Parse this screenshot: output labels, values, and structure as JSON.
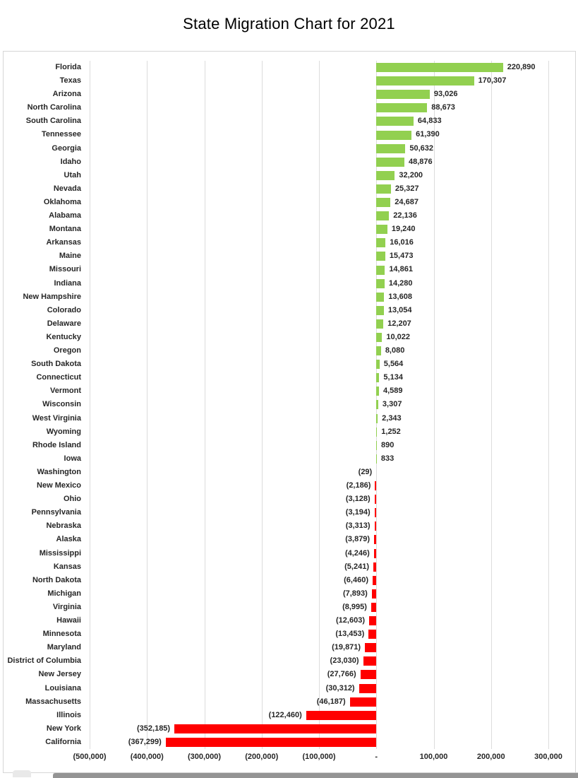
{
  "title": "State Migration Chart for 2021",
  "chart_data": {
    "type": "bar",
    "orientation": "horizontal",
    "title": "State Migration Chart for 2021",
    "legend": "none",
    "grid": "vertical",
    "x_axis": {
      "range": [
        -500000,
        300000
      ],
      "ticks": [
        -500000,
        -400000,
        -300000,
        -200000,
        -100000,
        0,
        100000,
        200000,
        300000
      ],
      "tick_labels": [
        "(500,000)",
        "(400,000)",
        "(300,000)",
        "(200,000)",
        "(100,000)",
        "-",
        "100,000",
        "200,000",
        "300,000"
      ]
    },
    "colors": {
      "positive_bar": "#92d050",
      "negative_bar": "#ff0000",
      "gridline": "#dcdcdc"
    },
    "categories": [
      "Florida",
      "Texas",
      "Arizona",
      "North Carolina",
      "South Carolina",
      "Tennessee",
      "Georgia",
      "Idaho",
      "Utah",
      "Nevada",
      "Oklahoma",
      "Alabama",
      "Montana",
      "Arkansas",
      "Maine",
      "Missouri",
      "Indiana",
      "New Hampshire",
      "Colorado",
      "Delaware",
      "Kentucky",
      "Oregon",
      "South Dakota",
      "Connecticut",
      "Vermont",
      "Wisconsin",
      "West Virginia",
      "Wyoming",
      "Rhode Island",
      "Iowa",
      "Washington",
      "New Mexico",
      "Ohio",
      "Pennsylvania",
      "Nebraska",
      "Alaska",
      "Mississippi",
      "Kansas",
      "North Dakota",
      "Michigan",
      "Virginia",
      "Hawaii",
      "Minnesota",
      "Maryland",
      "District of Columbia",
      "New Jersey",
      "Louisiana",
      "Massachusetts",
      "Illinois",
      "New York",
      "California"
    ],
    "values": [
      220890,
      170307,
      93026,
      88673,
      64833,
      61390,
      50632,
      48876,
      32200,
      25327,
      24687,
      22136,
      19240,
      16016,
      15473,
      14861,
      14280,
      13608,
      13054,
      12207,
      10022,
      8080,
      5564,
      5134,
      4589,
      3307,
      2343,
      1252,
      890,
      833,
      -29,
      -2186,
      -3128,
      -3194,
      -3313,
      -3879,
      -4246,
      -5241,
      -6460,
      -7893,
      -8995,
      -12603,
      -13453,
      -19871,
      -23030,
      -27766,
      -30312,
      -46187,
      -122460,
      -352185,
      -367299
    ],
    "value_labels": [
      "220,890",
      "170,307",
      "93,026",
      "88,673",
      "64,833",
      "61,390",
      "50,632",
      "48,876",
      "32,200",
      "25,327",
      "24,687",
      "22,136",
      "19,240",
      "16,016",
      "15,473",
      "14,861",
      "14,280",
      "13,608",
      "13,054",
      "12,207",
      "10,022",
      "8,080",
      "5,564",
      "5,134",
      "4,589",
      "3,307",
      "2,343",
      "1,252",
      "890",
      "833",
      "(29)",
      "(2,186)",
      "(3,128)",
      "(3,194)",
      "(3,313)",
      "(3,879)",
      "(4,246)",
      "(5,241)",
      "(6,460)",
      "(7,893)",
      "(8,995)",
      "(12,603)",
      "(13,453)",
      "(19,871)",
      "(23,030)",
      "(27,766)",
      "(30,312)",
      "(46,187)",
      "(122,460)",
      "(352,185)",
      "(367,299)"
    ]
  }
}
